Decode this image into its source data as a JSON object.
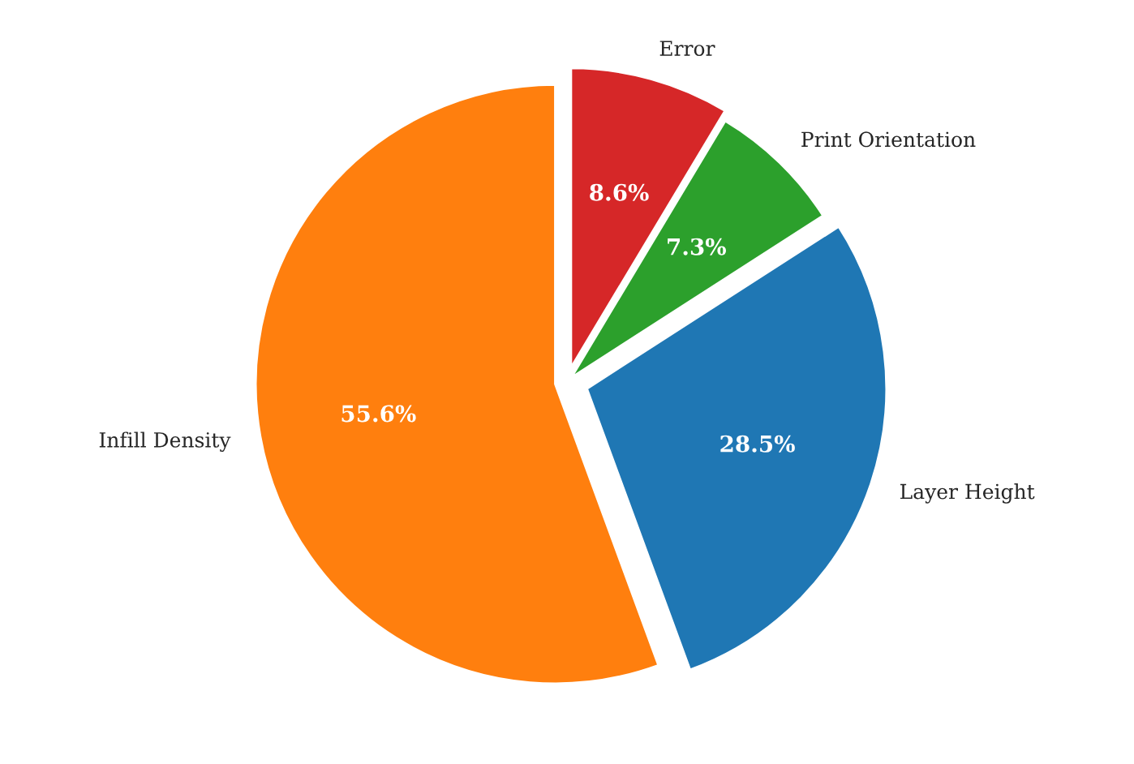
{
  "chart_data": {
    "type": "pie",
    "categories": [
      "Infill Density",
      "Layer Height",
      "Print Orientation",
      "Error"
    ],
    "values": [
      55.6,
      28.5,
      7.3,
      8.6
    ],
    "colors": [
      "#ff7f0e",
      "#1f77b4",
      "#2ca02c",
      "#d62728"
    ],
    "value_labels": [
      "55.6%",
      "28.5%",
      "7.3%",
      "8.6%"
    ]
  }
}
